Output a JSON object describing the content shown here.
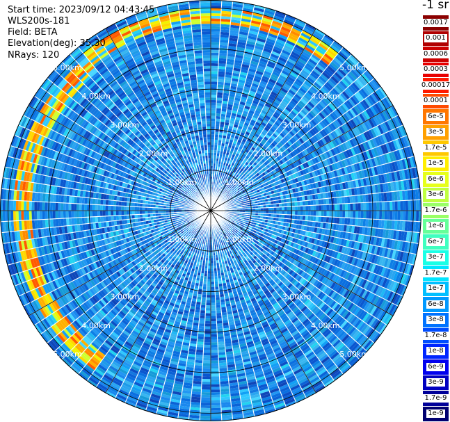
{
  "info": {
    "start_time": "Start time: 2023/09/12 04:43:45",
    "instrument": "WLS200s-181",
    "field": "Field: BETA",
    "elevation": "Elevation(deg): 35.30",
    "nrays": "NRays: 120"
  },
  "colorbar": {
    "unit_label": "-1 sr",
    "levels": [
      {
        "label": "0.0017",
        "color": "#8b0000"
      },
      {
        "label": "0.001",
        "color": "#b00000"
      },
      {
        "label": "0.0006",
        "color": "#cc0000"
      },
      {
        "label": "0.0003",
        "color": "#e80000"
      },
      {
        "label": "0.00017",
        "color": "#ff1a00"
      },
      {
        "label": "0.0001",
        "color": "#ff4a00"
      },
      {
        "label": "6e-5",
        "color": "#ff7700"
      },
      {
        "label": "3e-5",
        "color": "#ffa000"
      },
      {
        "label": "1.7e-5",
        "color": "#ffc800"
      },
      {
        "label": "1e-5",
        "color": "#ffee00"
      },
      {
        "label": "6e-6",
        "color": "#e6ff1a"
      },
      {
        "label": "3e-6",
        "color": "#c0ff40"
      },
      {
        "label": "1.7e-6",
        "color": "#99ff66"
      },
      {
        "label": "1e-6",
        "color": "#66ff99"
      },
      {
        "label": "6e-7",
        "color": "#40ffc0"
      },
      {
        "label": "3e-7",
        "color": "#1affe6"
      },
      {
        "label": "1.7e-7",
        "color": "#00e5ff"
      },
      {
        "label": "1e-7",
        "color": "#00bfff"
      },
      {
        "label": "6e-8",
        "color": "#0099ff"
      },
      {
        "label": "3e-8",
        "color": "#0073ff"
      },
      {
        "label": "1.7e-8",
        "color": "#004dff"
      },
      {
        "label": "1e-8",
        "color": "#0026ff"
      },
      {
        "label": "6e-9",
        "color": "#0000ee"
      },
      {
        "label": "3e-9",
        "color": "#0000c0"
      },
      {
        "label": "1.7e-9",
        "color": "#000099"
      },
      {
        "label": "1e-9",
        "color": "#000070"
      }
    ]
  },
  "range_rings": [
    {
      "km": 1,
      "label": "1.00km"
    },
    {
      "km": 2,
      "label": "2.00km"
    },
    {
      "km": 3,
      "label": "3.00km"
    },
    {
      "km": 4,
      "label": "4.00km"
    },
    {
      "km": 5,
      "label": "5.00km"
    }
  ],
  "map": {
    "max_range_km": 5.2,
    "n_rays": 120,
    "bright_arc": {
      "start_deg": 215,
      "end_deg": 320,
      "range_km": 4.6
    },
    "top_arc": {
      "start_deg": 320,
      "end_deg": 40,
      "range_km": 4.8
    }
  }
}
